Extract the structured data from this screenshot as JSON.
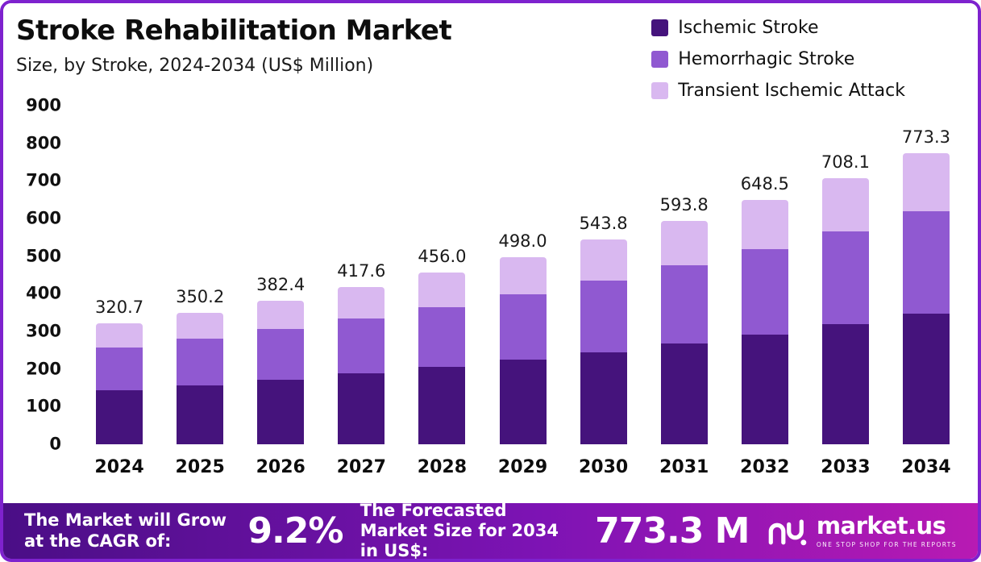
{
  "chart_data": {
    "type": "bar",
    "stacked": true,
    "title": "Stroke Rehabilitation Market",
    "subtitle": "Size, by Stroke, 2024-2034 (US$ Million)",
    "categories": [
      "2024",
      "2025",
      "2026",
      "2027",
      "2028",
      "2029",
      "2030",
      "2031",
      "2032",
      "2033",
      "2034"
    ],
    "series": [
      {
        "name": "Ischemic Stroke",
        "color": "#45137c",
        "values": [
          144.0,
          157.5,
          172.0,
          187.9,
          205.2,
          224.1,
          244.7,
          267.2,
          291.8,
          318.6,
          348.0
        ]
      },
      {
        "name": "Hemorrhagic Stroke",
        "color": "#9059d1",
        "values": [
          112.5,
          122.7,
          133.9,
          146.2,
          159.6,
          174.3,
          190.3,
          207.8,
          227.0,
          247.8,
          270.7
        ]
      },
      {
        "name": "Transient Ischemic Attack",
        "color": "#d9b8f0",
        "values": [
          64.2,
          70.0,
          76.5,
          83.5,
          91.2,
          99.6,
          108.8,
          118.8,
          129.7,
          141.7,
          154.6
        ]
      }
    ],
    "totals": [
      320.7,
      350.2,
      382.4,
      417.6,
      456.0,
      498.0,
      543.8,
      593.8,
      648.5,
      708.1,
      773.3
    ],
    "ylim": [
      0,
      900
    ],
    "yticks": [
      0,
      100,
      200,
      300,
      400,
      500,
      600,
      700,
      800,
      900
    ],
    "legend_position": "top-right",
    "grid": false
  },
  "banner": {
    "cagr_label": "The Market will Grow at the CAGR of:",
    "cagr_value": "9.2%",
    "forecast_label": "The Forecasted Market Size for 2034 in US$:",
    "forecast_value": "773.3 M",
    "brand": "market.us",
    "brand_tagline": "ONE STOP SHOP FOR THE REPORTS"
  },
  "colors": {
    "border": "#7e22ce",
    "banner_gradient_start": "#4a0e86",
    "banner_gradient_mid": "#7d13b4",
    "banner_gradient_end": "#b81ab3",
    "text": "#111111"
  }
}
